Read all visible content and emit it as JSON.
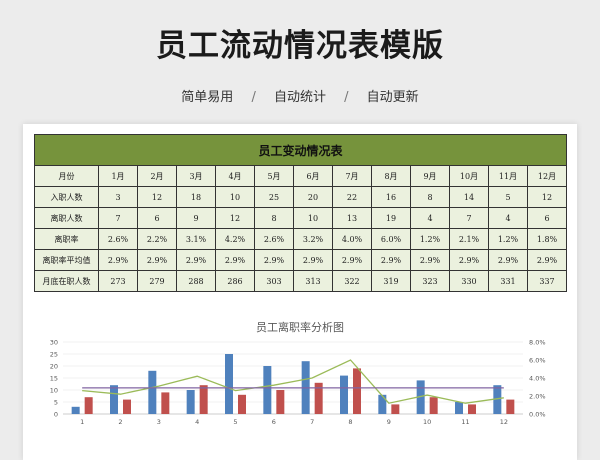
{
  "page": {
    "title": "员工流动情况表模版",
    "tags": [
      "简单易用",
      "自动统计",
      "自动更新"
    ],
    "sep": "/"
  },
  "table": {
    "title": "员工变动情况表",
    "header_label": "月份",
    "months": [
      "1月",
      "2月",
      "3月",
      "4月",
      "5月",
      "6月",
      "7月",
      "8月",
      "9月",
      "10月",
      "11月",
      "12月"
    ],
    "rows": [
      {
        "label": "入职人数",
        "values": [
          "3",
          "12",
          "18",
          "10",
          "25",
          "20",
          "22",
          "16",
          "8",
          "14",
          "5",
          "12"
        ]
      },
      {
        "label": "离职人数",
        "values": [
          "7",
          "6",
          "9",
          "12",
          "8",
          "10",
          "13",
          "19",
          "4",
          "7",
          "4",
          "6"
        ]
      },
      {
        "label": "离职率",
        "values": [
          "2.6%",
          "2.2%",
          "3.1%",
          "4.2%",
          "2.6%",
          "3.2%",
          "4.0%",
          "6.0%",
          "1.2%",
          "2.1%",
          "1.2%",
          "1.8%"
        ]
      },
      {
        "label": "离职率平均值",
        "values": [
          "2.9%",
          "2.9%",
          "2.9%",
          "2.9%",
          "2.9%",
          "2.9%",
          "2.9%",
          "2.9%",
          "2.9%",
          "2.9%",
          "2.9%",
          "2.9%"
        ]
      },
      {
        "label": "月底在职人数",
        "values": [
          "273",
          "279",
          "288",
          "286",
          "303",
          "313",
          "322",
          "319",
          "323",
          "330",
          "331",
          "337"
        ]
      }
    ]
  },
  "chart_data": {
    "type": "bar",
    "title": "员工离职率分析图",
    "categories": [
      "1",
      "2",
      "3",
      "4",
      "5",
      "6",
      "7",
      "8",
      "9",
      "10",
      "11",
      "12"
    ],
    "left_ticks": [
      "0",
      "5",
      "10",
      "15",
      "20",
      "25",
      "30"
    ],
    "right_ticks": [
      "0.0%",
      "2.0%",
      "4.0%",
      "6.0%",
      "8.0%"
    ],
    "ylim": [
      0,
      30
    ],
    "y2lim": [
      0,
      8
    ],
    "series": [
      {
        "values": [
          3,
          12,
          18,
          10,
          25,
          20,
          22,
          16,
          8,
          14,
          5,
          12
        ],
        "color": "#4f81bd",
        "axis": "left",
        "kind": "bar"
      },
      {
        "values": [
          7,
          6,
          9,
          12,
          8,
          10,
          13,
          19,
          4,
          7,
          4,
          6
        ],
        "color": "#c0504d",
        "axis": "left",
        "kind": "bar"
      },
      {
        "values": [
          2.6,
          2.2,
          3.1,
          4.2,
          2.6,
          3.2,
          4.0,
          6.0,
          1.2,
          2.1,
          1.2,
          1.8
        ],
        "color": "#9bbb59",
        "axis": "right",
        "kind": "line"
      },
      {
        "values": [
          2.9,
          2.9,
          2.9,
          2.9,
          2.9,
          2.9,
          2.9,
          2.9,
          2.9,
          2.9,
          2.9,
          2.9
        ],
        "color": "#8064a2",
        "axis": "right",
        "kind": "line"
      }
    ]
  }
}
